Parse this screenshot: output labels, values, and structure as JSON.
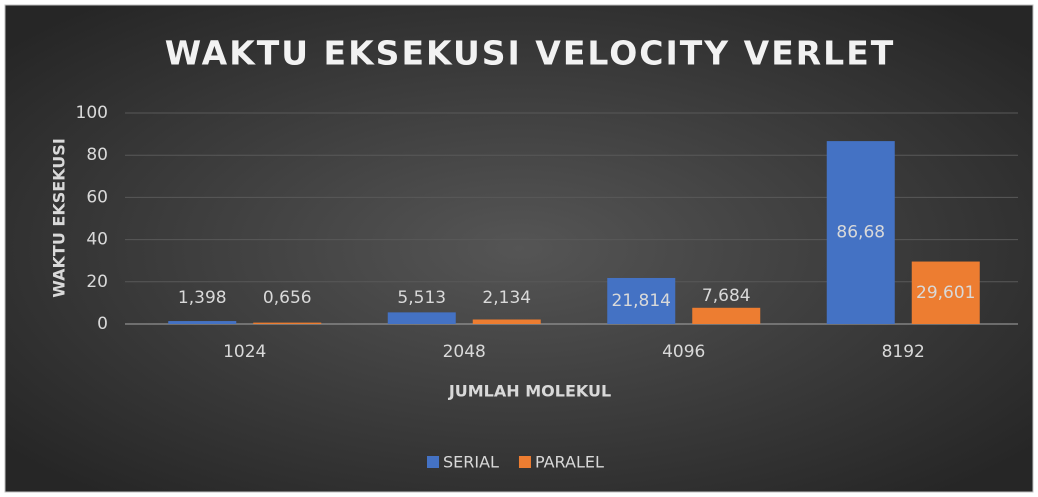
{
  "chart_data": {
    "type": "bar",
    "title": "WAKTU EKSEKUSI VELOCITY VERLET",
    "x_label": "JUMLAH MOLEKUL",
    "y_label": "WAKTU EKSEKUSI",
    "categories": [
      "1024",
      "2048",
      "4096",
      "8192"
    ],
    "series": [
      {
        "name": "SERIAL",
        "color": "#4472c4",
        "values": [
          1.398,
          5.513,
          21.814,
          86.68
        ],
        "value_labels": [
          "1,398",
          "5,513",
          "21,814",
          "86,68"
        ]
      },
      {
        "name": "PARALEL",
        "color": "#ed7d31",
        "values": [
          0.656,
          2.134,
          7.684,
          29.601
        ],
        "value_labels": [
          "0,656",
          "2,134",
          "7,684",
          "29,601"
        ]
      }
    ],
    "ylim": [
      0,
      100
    ],
    "yticks": [
      0,
      20,
      40,
      60,
      80,
      100
    ],
    "grid": true,
    "legend": "bottom"
  }
}
